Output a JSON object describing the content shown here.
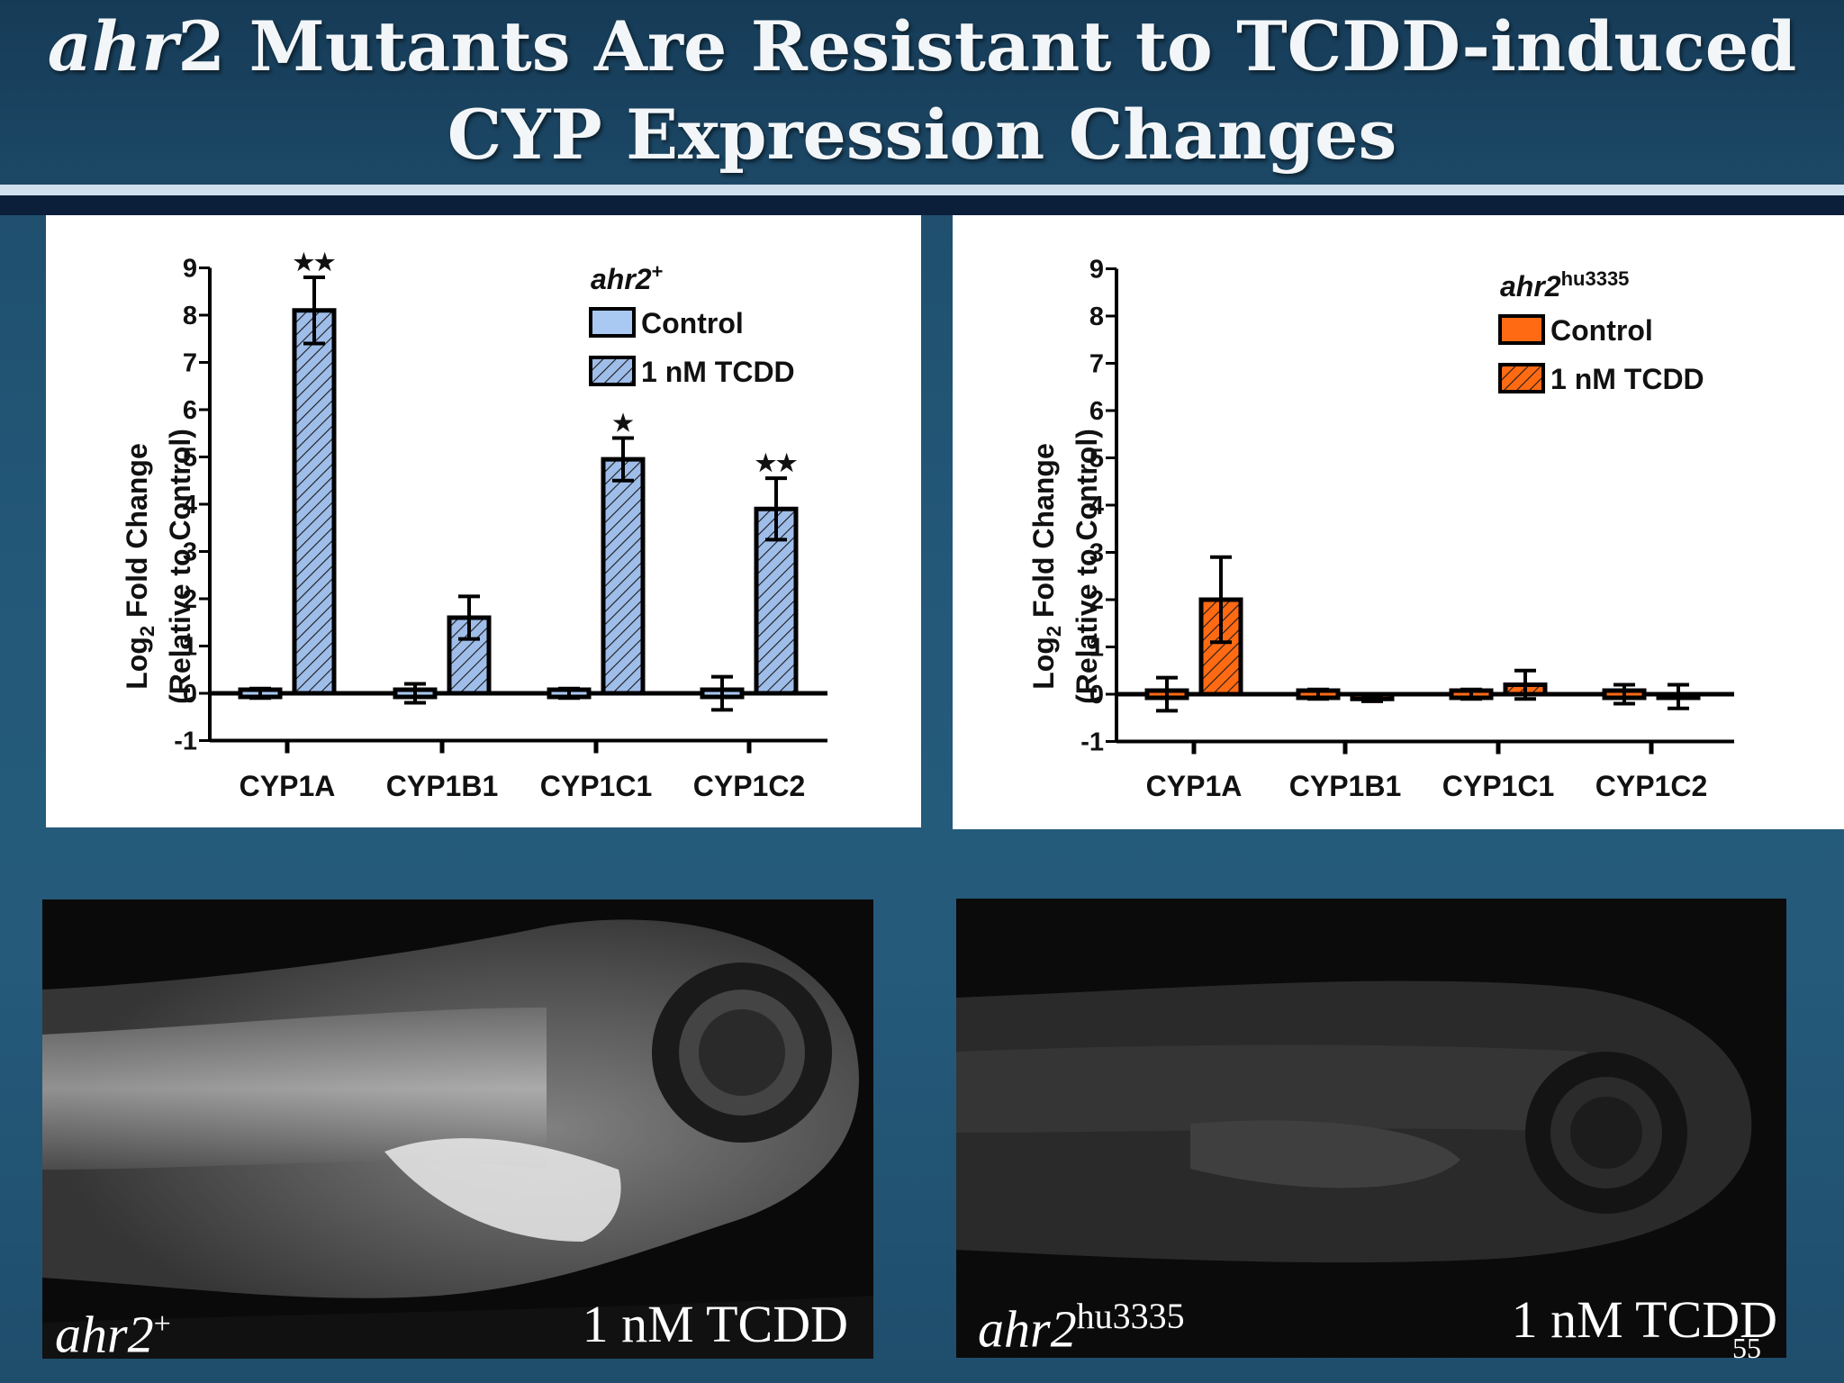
{
  "title": {
    "line1_italic": "ahr",
    "line1_rest": "2 Mutants Are Resistant to TCDD-induced",
    "line2": "CYP Expression Changes"
  },
  "colors": {
    "wt_control": "#a9c8f2",
    "wt_tcdd": "#9fbde9",
    "mut_control": "#ff6a13",
    "mut_tcdd": "#ff6a13"
  },
  "chart_data": [
    {
      "type": "bar",
      "legend_title": "ahr2",
      "legend_title_sup": "+",
      "ylabel_line1_pre": "Log",
      "ylabel_line1_sub": "2",
      "ylabel_line1_post": " Fold Change",
      "ylabel_line2": "(Relative to Control)",
      "ylim": [
        -1,
        9
      ],
      "yticks": [
        "-1",
        "0",
        "1",
        "2",
        "3",
        "4",
        "5",
        "6",
        "7",
        "8",
        "9"
      ],
      "categories": [
        "CYP1A",
        "CYP1B1",
        "CYP1C1",
        "CYP1C2"
      ],
      "series": [
        {
          "name": "Control",
          "values": [
            0.0,
            0.0,
            0.0,
            0.0
          ],
          "errors": [
            0.1,
            0.2,
            0.1,
            0.35
          ]
        },
        {
          "name": "1 nM TCDD",
          "values": [
            8.1,
            1.6,
            4.95,
            3.9
          ],
          "errors": [
            0.7,
            0.45,
            0.45,
            0.65
          ]
        }
      ],
      "significance": [
        "★★",
        "",
        "★",
        "★★"
      ],
      "legend_position": "top-right",
      "grid": false
    },
    {
      "type": "bar",
      "legend_title": "ahr2",
      "legend_title_sup": "hu3335",
      "ylabel_line1_pre": "Log",
      "ylabel_line1_sub": "2",
      "ylabel_line1_post": " Fold Change",
      "ylabel_line2": "(Relative to Control)",
      "ylim": [
        -1,
        9
      ],
      "yticks": [
        "-1",
        "0",
        "1",
        "2",
        "3",
        "4",
        "5",
        "6",
        "7",
        "8",
        "9"
      ],
      "categories": [
        "CYP1A",
        "CYP1B1",
        "CYP1C1",
        "CYP1C2"
      ],
      "series": [
        {
          "name": "Control",
          "values": [
            0.0,
            0.0,
            0.0,
            0.0
          ],
          "errors": [
            0.35,
            0.1,
            0.1,
            0.2
          ]
        },
        {
          "name": "1 nM TCDD",
          "values": [
            2.0,
            -0.1,
            0.2,
            -0.05
          ],
          "errors": [
            0.9,
            0.05,
            0.3,
            0.25
          ]
        }
      ],
      "significance": [
        "",
        "",
        "",
        ""
      ],
      "legend_position": "top-right",
      "grid": false
    }
  ],
  "images": {
    "left_caption_main": "ahr2",
    "left_caption_sup": "+",
    "left_treatment": "1 nM TCDD",
    "right_caption_main": "ahr2",
    "right_caption_sup": "hu3335",
    "right_treatment": "1 nM TCDD"
  },
  "slide_number": "55"
}
